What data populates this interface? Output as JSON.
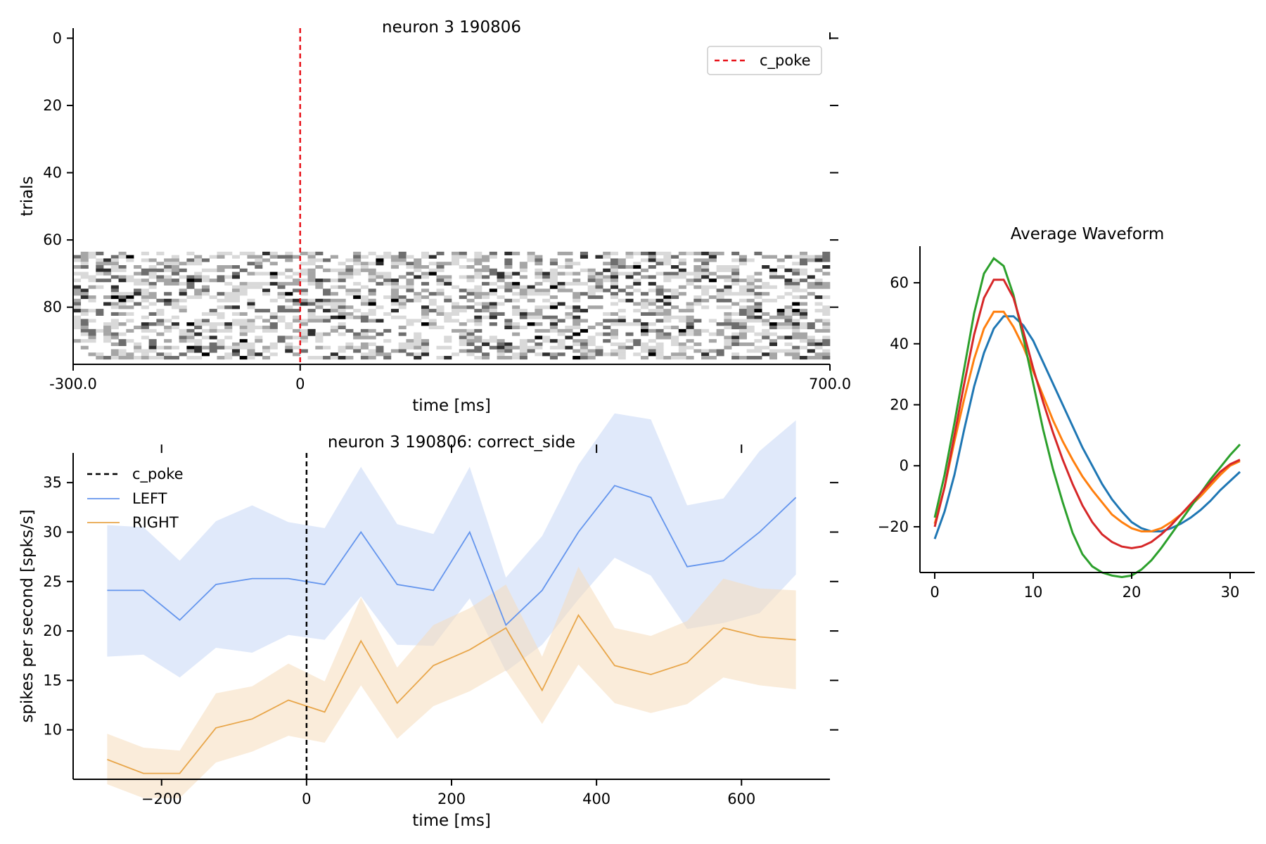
{
  "chart_data": [
    {
      "type": "heatmap",
      "title": "neuron 3 190806",
      "xlabel": "time [ms]",
      "ylabel": "trials",
      "xlim": [
        -300,
        700
      ],
      "ylim": [
        97,
        -3
      ],
      "xticks": [
        -300,
        0,
        700
      ],
      "xtick_labels": [
        "-300.0",
        "0",
        "700.0"
      ],
      "yticks": [
        0,
        20,
        40,
        60,
        80
      ],
      "yticks_labels": [
        "0",
        "20",
        "40",
        "60",
        "80"
      ],
      "trial_range": [
        64,
        96
      ],
      "bin_width_ms": 10,
      "event_line": {
        "x": 0,
        "label": "c_poke",
        "color": "#e8141b",
        "style": "dashed"
      },
      "legend": {
        "entries": [
          "c_poke"
        ],
        "position": "top-right"
      },
      "colormap": [
        "#ffffff",
        "#d9d9d9",
        "#a6a6a6",
        "#6e6e6e",
        "#2e2e2e",
        "#000000"
      ]
    },
    {
      "type": "line",
      "title": "neuron 3 190806: correct_side",
      "xlabel": "time [ms]",
      "ylabel": "spikes per second [spks/s]",
      "xlim": [
        -322,
        722
      ],
      "ylim": [
        5,
        38
      ],
      "xticks": [
        -200,
        0,
        200,
        400,
        600
      ],
      "yticks": [
        10,
        15,
        20,
        25,
        30,
        35
      ],
      "event_line": {
        "x": 0,
        "label": "c_poke",
        "color": "#000000",
        "style": "dashed"
      },
      "legend": {
        "entries": [
          "c_poke",
          "LEFT",
          "RIGHT"
        ],
        "position": "top-left"
      },
      "x": [
        -275,
        -225,
        -175,
        -125,
        -75,
        -25,
        25,
        75,
        125,
        175,
        225,
        275,
        325,
        375,
        425,
        475,
        525,
        575,
        625,
        675
      ],
      "series": [
        {
          "name": "LEFT",
          "color": "#6495ed",
          "values": [
            24.1,
            24.1,
            21.1,
            24.7,
            25.3,
            25.3,
            24.7,
            30.0,
            24.7,
            24.1,
            30.0,
            20.6,
            24.1,
            30.0,
            34.7,
            33.5,
            26.5,
            27.1,
            30.0,
            33.5
          ],
          "lower": [
            17.4,
            17.6,
            15.3,
            18.3,
            17.8,
            19.6,
            19.1,
            23.5,
            18.6,
            18.5,
            23.3,
            15.9,
            18.6,
            23.2,
            27.4,
            25.6,
            20.2,
            20.8,
            21.8,
            25.7
          ],
          "upper": [
            30.7,
            30.5,
            27.1,
            31.1,
            32.7,
            31.0,
            30.4,
            36.6,
            30.8,
            29.8,
            36.6,
            25.4,
            29.6,
            36.8,
            42.0,
            41.4,
            32.7,
            33.4,
            38.2,
            41.3
          ]
        },
        {
          "name": "RIGHT",
          "color": "#e8a64a",
          "values": [
            7.0,
            5.6,
            5.6,
            10.2,
            11.1,
            13.0,
            11.8,
            19.0,
            12.7,
            16.5,
            18.1,
            20.3,
            14.0,
            21.6,
            16.5,
            15.6,
            16.8,
            20.3,
            19.4,
            19.1
          ],
          "lower": [
            4.5,
            3.1,
            3.1,
            6.7,
            7.8,
            9.4,
            8.7,
            14.5,
            9.1,
            12.4,
            13.9,
            16.0,
            10.6,
            16.6,
            12.7,
            11.7,
            12.6,
            15.3,
            14.5,
            14.1
          ],
          "upper": [
            9.6,
            8.2,
            7.9,
            13.7,
            14.4,
            16.7,
            14.9,
            23.4,
            16.3,
            20.6,
            22.3,
            24.7,
            17.4,
            26.5,
            20.3,
            19.5,
            21.0,
            25.3,
            24.3,
            24.1
          ]
        }
      ]
    },
    {
      "type": "line",
      "title": "Average Waveform",
      "xlabel": "",
      "ylabel": "",
      "xlim": [
        -1.5,
        32.5
      ],
      "ylim": [
        -35,
        72
      ],
      "xticks": [
        0,
        10,
        20,
        30
      ],
      "yticks": [
        -20,
        0,
        20,
        40,
        60
      ],
      "yticks_labels": [
        "−20",
        "0",
        "20",
        "40",
        "60"
      ],
      "x": [
        0,
        1,
        2,
        3,
        4,
        5,
        6,
        7,
        8,
        9,
        10,
        11,
        12,
        13,
        14,
        15,
        16,
        17,
        18,
        19,
        20,
        21,
        22,
        23,
        24,
        25,
        26,
        27,
        28,
        29,
        30,
        31
      ],
      "series": [
        {
          "color": "#1f77b4",
          "values": [
            -24,
            -15,
            -3,
            12,
            26,
            37,
            45,
            49,
            49,
            46,
            41,
            34,
            27,
            20,
            13,
            6,
            0,
            -6,
            -11,
            -15,
            -18.5,
            -20.5,
            -21.5,
            -21.5,
            -20.5,
            -19,
            -17,
            -14.5,
            -11.5,
            -8,
            -5,
            -2
          ]
        },
        {
          "color": "#ff7f0e",
          "values": [
            -19,
            -7,
            8,
            22,
            35,
            45,
            50.5,
            50.5,
            45.5,
            39,
            31,
            23,
            15,
            8,
            2,
            -3.5,
            -8,
            -12,
            -16,
            -18.5,
            -20.5,
            -21.5,
            -21.5,
            -20.5,
            -18.5,
            -16,
            -13,
            -10,
            -6.5,
            -3,
            0,
            1.5
          ]
        },
        {
          "color": "#2ca02c",
          "values": [
            -17,
            -3,
            14,
            32,
            50,
            63,
            68,
            65.5,
            56,
            42,
            27,
            12,
            -1,
            -12,
            -22,
            -29,
            -33,
            -35,
            -36,
            -36.5,
            -36,
            -34,
            -31,
            -27,
            -22.5,
            -18,
            -13.5,
            -9,
            -4.5,
            -0.5,
            3.5,
            7
          ]
        },
        {
          "color": "#d62728",
          "values": [
            -20,
            -7,
            10,
            27,
            43,
            55,
            61,
            61,
            55,
            44,
            32,
            21,
            11,
            2,
            -6,
            -13,
            -18.5,
            -22.5,
            -25,
            -26.5,
            -27,
            -26.5,
            -25,
            -22.5,
            -19.5,
            -16,
            -12.5,
            -9,
            -5.5,
            -2,
            0.5,
            2
          ]
        }
      ]
    }
  ]
}
